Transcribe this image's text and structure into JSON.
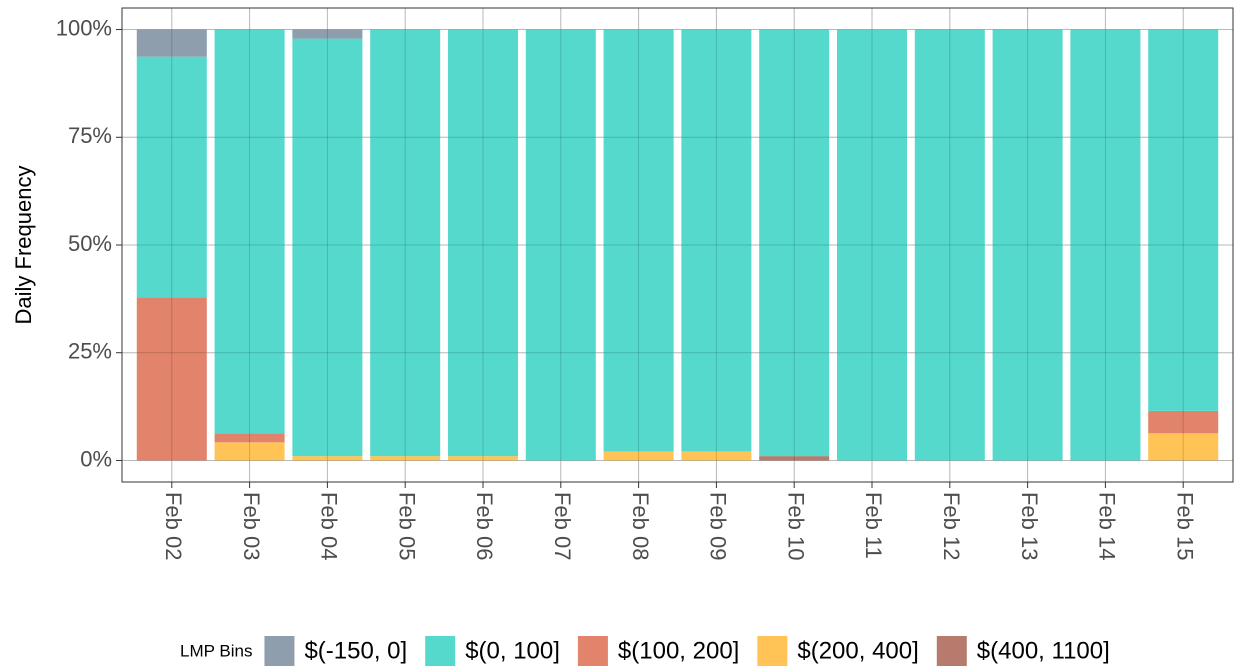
{
  "chart_data": {
    "type": "bar",
    "stacked": true,
    "ylabel": "Daily Frequency",
    "legend_title": "LMP Bins",
    "legend_position": "bottom",
    "grid": true,
    "categories": [
      "Feb 02",
      "Feb 03",
      "Feb 04",
      "Feb 05",
      "Feb 06",
      "Feb 07",
      "Feb 08",
      "Feb 09",
      "Feb 10",
      "Feb 11",
      "Feb 12",
      "Feb 13",
      "Feb 14",
      "Feb 15"
    ],
    "series": [
      {
        "name": "$(-150, 0]",
        "color": "#8496a6",
        "values": [
          6.3,
          0,
          2.1,
          0,
          0,
          0,
          0,
          0,
          0,
          0,
          0,
          0,
          0,
          0
        ]
      },
      {
        "name": "$(0, 100]",
        "color": "#47d6c8",
        "values": [
          55.9,
          93.7,
          96.9,
          99,
          99,
          100,
          97.9,
          97.9,
          99,
          100,
          100,
          100,
          100,
          88.5
        ]
      },
      {
        "name": "$(100, 200]",
        "color": "#e07a5f",
        "values": [
          37.8,
          2.1,
          0,
          0,
          0,
          0,
          0,
          0,
          0,
          0,
          0,
          0,
          0,
          5.2
        ]
      },
      {
        "name": "$(200, 400]",
        "color": "#ffbf47",
        "values": [
          0,
          4.2,
          1.0,
          1.0,
          1.0,
          0,
          2.1,
          2.1,
          0,
          0,
          0,
          0,
          0,
          6.3
        ]
      },
      {
        "name": "$(400, 1100]",
        "color": "#b07060",
        "values": [
          0,
          0,
          0,
          0,
          0,
          0,
          0,
          0,
          1.0,
          0,
          0,
          0,
          0,
          0
        ]
      }
    ],
    "ylim": [
      -5,
      105
    ],
    "yticks": [
      {
        "value": 0,
        "label": "0%"
      },
      {
        "value": 25,
        "label": "25%"
      },
      {
        "value": 50,
        "label": "50%"
      },
      {
        "value": 75,
        "label": "75%"
      },
      {
        "value": 100,
        "label": "100%"
      }
    ]
  }
}
